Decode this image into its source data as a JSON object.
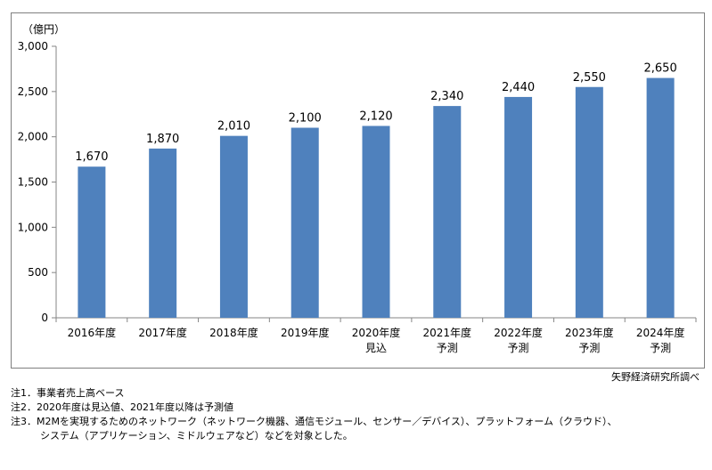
{
  "chart_data": {
    "type": "bar",
    "unit_label": "（億円）",
    "categories": [
      [
        "2016年度"
      ],
      [
        "2017年度"
      ],
      [
        "2018年度"
      ],
      [
        "2019年度"
      ],
      [
        "2020年度",
        "見込"
      ],
      [
        "2021年度",
        "予測"
      ],
      [
        "2022年度",
        "予測"
      ],
      [
        "2023年度",
        "予測"
      ],
      [
        "2024年度",
        "予測"
      ]
    ],
    "values": [
      1670,
      1870,
      2010,
      2100,
      2120,
      2340,
      2440,
      2550,
      2650
    ],
    "value_labels": [
      "1,670",
      "1,870",
      "2,010",
      "2,100",
      "2,120",
      "2,340",
      "2,440",
      "2,550",
      "2,650"
    ],
    "ylim": [
      0,
      3000
    ],
    "yticks": [
      0,
      500,
      1000,
      1500,
      2000,
      2500,
      3000
    ],
    "ytick_labels": [
      "0",
      "500",
      "1,000",
      "1,500",
      "2,000",
      "2,500",
      "3,000"
    ],
    "grid": false,
    "legend": "none",
    "bar_color": "#4f81bd"
  },
  "source": "矢野経済研究所調べ",
  "notes": [
    "注1．事業者売上高ベース",
    "注2．2020年度は見込値、2021年度以降は予測値",
    "注3．M2Mを実現するためのネットワーク（ネットワーク機器、通信モジュール、センサー／デバイス）、プラットフォーム（クラウド）、",
    "　　　システム（アプリケーション、ミドルウェアなど）などを対象とした。"
  ]
}
